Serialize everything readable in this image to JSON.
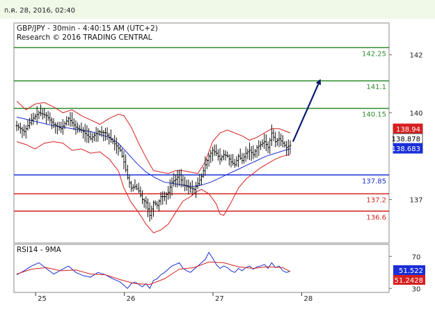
{
  "header": {
    "timestamp": "ก.ค. 28, 2016, 02:40"
  },
  "chart_data": [
    {
      "type": "candlestick",
      "title": "GBP/JPY - 30min - 4:40:15 AM (UTC+2)",
      "subtitle": "Research © 2016 TRADING CENTRAL",
      "ylim": [
        135.5,
        143.1
      ],
      "y_ticks": [
        {
          "value": 142,
          "label": "142"
        },
        {
          "value": 140,
          "label": "140"
        },
        {
          "value": 137,
          "label": "137"
        }
      ],
      "x_ticks": [
        {
          "label": "25",
          "bar_index": 14
        },
        {
          "label": "26",
          "bar_index": 62
        },
        {
          "label": "27",
          "bar_index": 110
        },
        {
          "label": "28",
          "bar_index": 158
        }
      ],
      "bars_total": 200,
      "levels": [
        {
          "value": 142.25,
          "label": "142.25",
          "color": "#2e8b2e"
        },
        {
          "value": 141.1,
          "label": "141.1",
          "color": "#2e8b2e"
        },
        {
          "value": 140.15,
          "label": "140.15",
          "color": "#2e8b2e"
        },
        {
          "value": 137.85,
          "label": "137.85",
          "color": "#1a2fd6"
        },
        {
          "value": 137.2,
          "label": "137.2",
          "color": "#d62020"
        },
        {
          "value": 136.6,
          "label": "136.6",
          "color": "#d62020"
        }
      ],
      "price_labels": [
        {
          "value": 138.94,
          "label": "138.94",
          "bg": "#d62020",
          "fg": "#ffffff"
        },
        {
          "value": 138.878,
          "label": "138.878",
          "bg": "#ffffff",
          "fg": "#000000"
        },
        {
          "value": 138.683,
          "label": "138.683",
          "bg": "#1a2fd6",
          "fg": "#ffffff"
        }
      ],
      "colors": {
        "price": "#111111",
        "ma": "#1a2fd6",
        "bollinger": "#d62020",
        "arrow": "#0a1a6e"
      },
      "projection": {
        "from_value": 139.0,
        "to_value": 141.1
      },
      "close_path": [
        [
          0,
          139.55
        ],
        [
          4,
          139.35
        ],
        [
          8,
          139.75
        ],
        [
          12,
          140.0
        ],
        [
          16,
          139.9
        ],
        [
          20,
          139.6
        ],
        [
          24,
          139.45
        ],
        [
          28,
          139.8
        ],
        [
          32,
          139.5
        ],
        [
          36,
          139.35
        ],
        [
          40,
          139.1
        ],
        [
          44,
          139.35
        ],
        [
          48,
          139.3
        ],
        [
          52,
          139.0
        ],
        [
          56,
          138.7
        ],
        [
          58,
          138.3
        ],
        [
          60,
          137.75
        ],
        [
          62,
          137.4
        ],
        [
          64,
          137.45
        ],
        [
          66,
          137.3
        ],
        [
          68,
          137.0
        ],
        [
          70,
          136.9
        ],
        [
          72,
          136.45
        ],
        [
          74,
          136.9
        ],
        [
          76,
          136.8
        ],
        [
          78,
          137.1
        ],
        [
          80,
          137.1
        ],
        [
          82,
          137.25
        ],
        [
          84,
          137.6
        ],
        [
          86,
          137.7
        ],
        [
          88,
          137.85
        ],
        [
          90,
          137.5
        ],
        [
          92,
          137.45
        ],
        [
          94,
          137.4
        ],
        [
          96,
          137.35
        ],
        [
          98,
          137.55
        ],
        [
          100,
          137.8
        ],
        [
          102,
          138.2
        ],
        [
          104,
          138.5
        ],
        [
          106,
          138.7
        ],
        [
          108,
          138.6
        ],
        [
          110,
          138.4
        ],
        [
          112,
          138.55
        ],
        [
          114,
          138.5
        ],
        [
          116,
          138.3
        ],
        [
          118,
          138.2
        ],
        [
          120,
          138.5
        ],
        [
          122,
          138.35
        ],
        [
          124,
          138.6
        ],
        [
          126,
          138.7
        ],
        [
          128,
          138.55
        ],
        [
          130,
          138.8
        ],
        [
          132,
          138.9
        ],
        [
          134,
          139.0
        ],
        [
          136,
          138.8
        ],
        [
          138,
          139.3
        ],
        [
          140,
          139.0
        ],
        [
          142,
          139.1
        ],
        [
          144,
          138.95
        ],
        [
          146,
          138.8
        ],
        [
          148,
          138.88
        ]
      ],
      "ma_path": [
        [
          0,
          139.85
        ],
        [
          10,
          139.7
        ],
        [
          20,
          139.55
        ],
        [
          30,
          139.45
        ],
        [
          40,
          139.35
        ],
        [
          50,
          139.15
        ],
        [
          55,
          138.95
        ],
        [
          60,
          138.6
        ],
        [
          65,
          138.25
        ],
        [
          70,
          137.95
        ],
        [
          75,
          137.75
        ],
        [
          80,
          137.6
        ],
        [
          85,
          137.55
        ],
        [
          90,
          137.5
        ],
        [
          95,
          137.45
        ],
        [
          100,
          137.5
        ],
        [
          105,
          137.6
        ],
        [
          110,
          137.75
        ],
        [
          115,
          137.9
        ],
        [
          120,
          138.05
        ],
        [
          125,
          138.2
        ],
        [
          130,
          138.35
        ],
        [
          135,
          138.5
        ],
        [
          140,
          138.6
        ],
        [
          145,
          138.7
        ],
        [
          148,
          138.75
        ]
      ],
      "bb_upper": [
        [
          0,
          140.4
        ],
        [
          5,
          140.1
        ],
        [
          10,
          140.3
        ],
        [
          15,
          140.35
        ],
        [
          20,
          140.2
        ],
        [
          25,
          140.0
        ],
        [
          30,
          140.1
        ],
        [
          35,
          139.9
        ],
        [
          40,
          139.75
        ],
        [
          45,
          139.6
        ],
        [
          50,
          139.8
        ],
        [
          55,
          139.95
        ],
        [
          58,
          139.9
        ],
        [
          62,
          139.5
        ],
        [
          66,
          138.95
        ],
        [
          70,
          138.45
        ],
        [
          74,
          138.0
        ],
        [
          78,
          137.95
        ],
        [
          82,
          137.9
        ],
        [
          86,
          138.0
        ],
        [
          90,
          138.0
        ],
        [
          94,
          137.95
        ],
        [
          98,
          137.9
        ],
        [
          102,
          138.3
        ],
        [
          106,
          139.0
        ],
        [
          110,
          139.3
        ],
        [
          114,
          139.4
        ],
        [
          118,
          139.3
        ],
        [
          122,
          139.2
        ],
        [
          126,
          139.05
        ],
        [
          130,
          139.15
        ],
        [
          134,
          139.3
        ],
        [
          138,
          139.45
        ],
        [
          142,
          139.45
        ],
        [
          146,
          139.35
        ],
        [
          148,
          139.3
        ]
      ],
      "bb_lower": [
        [
          0,
          139.0
        ],
        [
          5,
          138.9
        ],
        [
          10,
          138.75
        ],
        [
          15,
          138.95
        ],
        [
          20,
          139.0
        ],
        [
          25,
          138.95
        ],
        [
          30,
          138.7
        ],
        [
          35,
          138.75
        ],
        [
          40,
          138.6
        ],
        [
          45,
          138.65
        ],
        [
          50,
          138.4
        ],
        [
          55,
          138.0
        ],
        [
          58,
          137.4
        ],
        [
          62,
          136.9
        ],
        [
          66,
          136.55
        ],
        [
          70,
          136.15
        ],
        [
          74,
          135.85
        ],
        [
          78,
          135.95
        ],
        [
          82,
          136.15
        ],
        [
          86,
          136.55
        ],
        [
          90,
          136.95
        ],
        [
          94,
          137.1
        ],
        [
          98,
          137.3
        ],
        [
          100,
          137.35
        ],
        [
          104,
          137.2
        ],
        [
          108,
          136.85
        ],
        [
          110,
          136.5
        ],
        [
          112,
          136.45
        ],
        [
          116,
          136.9
        ],
        [
          120,
          137.4
        ],
        [
          124,
          137.7
        ],
        [
          128,
          137.9
        ],
        [
          132,
          138.1
        ],
        [
          136,
          138.25
        ],
        [
          140,
          138.4
        ],
        [
          144,
          138.5
        ],
        [
          148,
          138.55
        ]
      ]
    },
    {
      "type": "line",
      "title": "RSI14 - 9MA",
      "ylim": [
        25,
        85
      ],
      "y_ticks": [
        {
          "value": 70,
          "label": "70"
        },
        {
          "value": 30,
          "label": "30"
        }
      ],
      "rsi_label": {
        "value": 51.522,
        "label": "51.522",
        "bg": "#1a2fd6",
        "fg": "#ffffff"
      },
      "ma_label": {
        "value": 51.2428,
        "label": "51.2428",
        "bg": "#d62020",
        "fg": "#ffffff"
      },
      "series": [
        {
          "color": "#1a2fd6",
          "points": [
            [
              0,
              47
            ],
            [
              4,
              52
            ],
            [
              8,
              58
            ],
            [
              12,
              62
            ],
            [
              16,
              55
            ],
            [
              20,
              48
            ],
            [
              24,
              53
            ],
            [
              28,
              58
            ],
            [
              32,
              50
            ],
            [
              36,
              46
            ],
            [
              40,
              44
            ],
            [
              44,
              50
            ],
            [
              48,
              47
            ],
            [
              52,
              42
            ],
            [
              56,
              38
            ],
            [
              58,
              34
            ],
            [
              60,
              30
            ],
            [
              62,
              36
            ],
            [
              64,
              38
            ],
            [
              66,
              35
            ],
            [
              68,
              32
            ],
            [
              70,
              36
            ],
            [
              72,
              30
            ],
            [
              74,
              40
            ],
            [
              76,
              42
            ],
            [
              78,
              47
            ],
            [
              80,
              50
            ],
            [
              82,
              54
            ],
            [
              84,
              58
            ],
            [
              86,
              60
            ],
            [
              88,
              62
            ],
            [
              90,
              55
            ],
            [
              92,
              52
            ],
            [
              94,
              50
            ],
            [
              96,
              54
            ],
            [
              98,
              58
            ],
            [
              100,
              62
            ],
            [
              102,
              66
            ],
            [
              104,
              75
            ],
            [
              106,
              68
            ],
            [
              108,
              60
            ],
            [
              110,
              55
            ],
            [
              112,
              58
            ],
            [
              114,
              56
            ],
            [
              116,
              52
            ],
            [
              118,
              50
            ],
            [
              120,
              55
            ],
            [
              122,
              52
            ],
            [
              124,
              56
            ],
            [
              126,
              58
            ],
            [
              128,
              54
            ],
            [
              130,
              57
            ],
            [
              132,
              58
            ],
            [
              134,
              60
            ],
            [
              136,
              55
            ],
            [
              138,
              62
            ],
            [
              140,
              56
            ],
            [
              142,
              58
            ],
            [
              144,
              52
            ],
            [
              146,
              50
            ],
            [
              148,
              51.5
            ]
          ]
        },
        {
          "color": "#d62020",
          "points": [
            [
              0,
              48
            ],
            [
              8,
              54
            ],
            [
              16,
              56
            ],
            [
              24,
              52
            ],
            [
              32,
              53
            ],
            [
              40,
              48
            ],
            [
              48,
              47
            ],
            [
              56,
              41
            ],
            [
              64,
              36
            ],
            [
              72,
              35
            ],
            [
              80,
              42
            ],
            [
              88,
              54
            ],
            [
              96,
              56
            ],
            [
              104,
              63
            ],
            [
              112,
              62
            ],
            [
              120,
              57
            ],
            [
              128,
              55
            ],
            [
              136,
              57
            ],
            [
              144,
              56
            ],
            [
              148,
              51.2
            ]
          ]
        }
      ]
    }
  ]
}
